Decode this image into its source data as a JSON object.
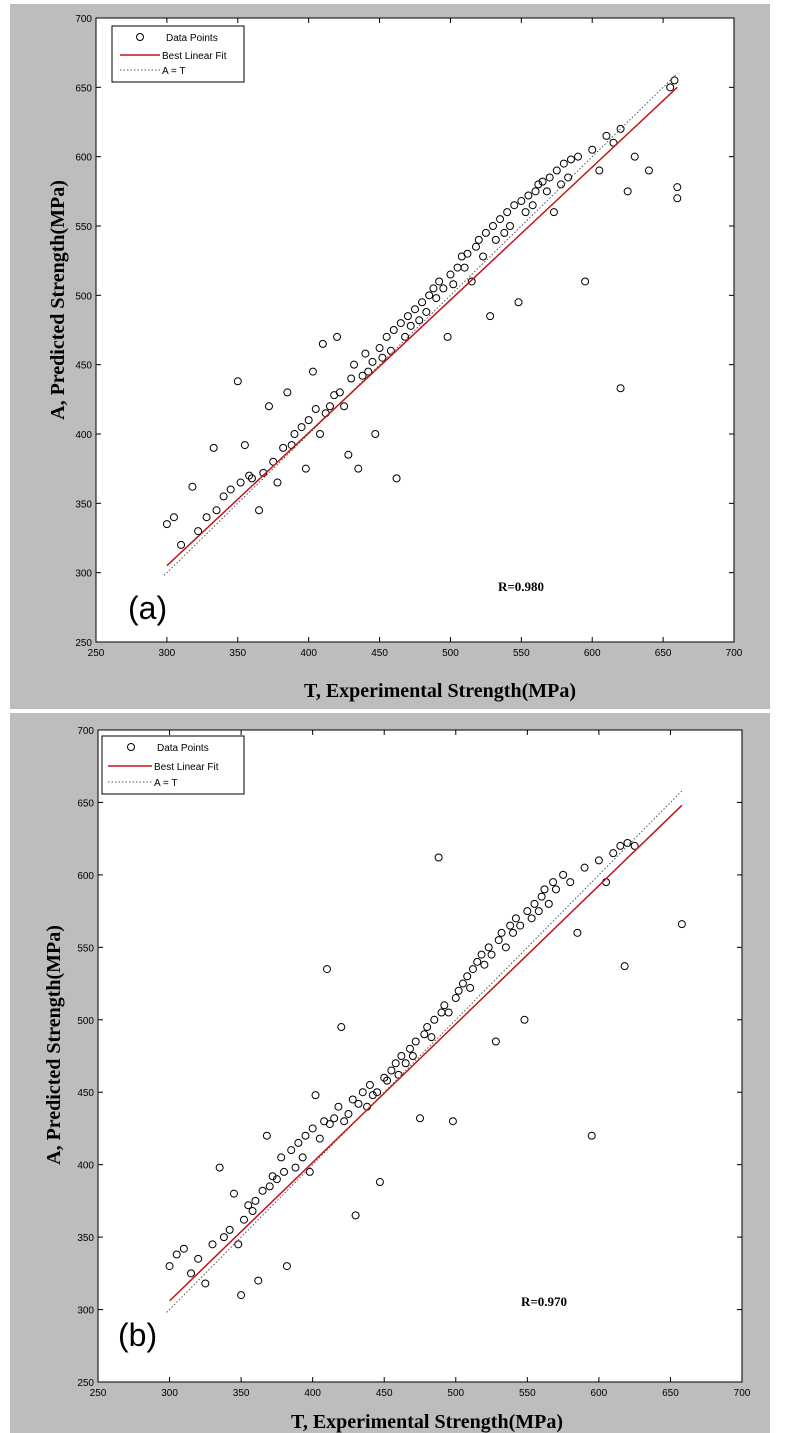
{
  "chart_data": [
    {
      "type": "scatter",
      "panel_label": "(a)",
      "xlabel": "T, Experimental Strength(MPa)",
      "ylabel": "A, Predicted Strength(MPa)",
      "xlim": [
        250,
        700
      ],
      "ylim": [
        250,
        700
      ],
      "xticks": [
        250,
        300,
        350,
        400,
        450,
        500,
        550,
        600,
        650,
        700
      ],
      "yticks": [
        250,
        300,
        350,
        400,
        450,
        500,
        550,
        600,
        650,
        700
      ],
      "grid": false,
      "legend_position": "top-left",
      "legend": [
        {
          "label": "Data Points",
          "marker": "circle",
          "color": "#000000"
        },
        {
          "label": "Best Linear Fit",
          "style": "solid",
          "color": "#c0151b"
        },
        {
          "label": "A = T",
          "style": "dotted",
          "color": "#555555"
        }
      ],
      "annotation": "R=0.980",
      "fit_line": {
        "x": [
          300,
          660
        ],
        "y": [
          305,
          650
        ]
      },
      "identity_line": {
        "x": [
          298,
          660
        ],
        "y": [
          298,
          660
        ]
      },
      "series": [
        {
          "name": "Data Points",
          "points": [
            [
              300,
              335
            ],
            [
              305,
              340
            ],
            [
              310,
              320
            ],
            [
              318,
              362
            ],
            [
              322,
              330
            ],
            [
              328,
              340
            ],
            [
              333,
              390
            ],
            [
              335,
              345
            ],
            [
              340,
              355
            ],
            [
              345,
              360
            ],
            [
              350,
              438
            ],
            [
              352,
              365
            ],
            [
              355,
              392
            ],
            [
              358,
              370
            ],
            [
              360,
              368
            ],
            [
              365,
              345
            ],
            [
              368,
              372
            ],
            [
              372,
              420
            ],
            [
              375,
              380
            ],
            [
              378,
              365
            ],
            [
              382,
              390
            ],
            [
              385,
              430
            ],
            [
              388,
              392
            ],
            [
              390,
              400
            ],
            [
              395,
              405
            ],
            [
              398,
              375
            ],
            [
              400,
              410
            ],
            [
              403,
              445
            ],
            [
              405,
              418
            ],
            [
              408,
              400
            ],
            [
              410,
              465
            ],
            [
              412,
              415
            ],
            [
              415,
              420
            ],
            [
              418,
              428
            ],
            [
              420,
              470
            ],
            [
              422,
              430
            ],
            [
              425,
              420
            ],
            [
              428,
              385
            ],
            [
              430,
              440
            ],
            [
              432,
              450
            ],
            [
              435,
              375
            ],
            [
              438,
              442
            ],
            [
              440,
              458
            ],
            [
              442,
              445
            ],
            [
              445,
              452
            ],
            [
              447,
              400
            ],
            [
              450,
              462
            ],
            [
              452,
              455
            ],
            [
              455,
              470
            ],
            [
              458,
              460
            ],
            [
              460,
              475
            ],
            [
              462,
              368
            ],
            [
              465,
              480
            ],
            [
              468,
              470
            ],
            [
              470,
              485
            ],
            [
              472,
              478
            ],
            [
              475,
              490
            ],
            [
              478,
              482
            ],
            [
              480,
              495
            ],
            [
              483,
              488
            ],
            [
              485,
              500
            ],
            [
              488,
              505
            ],
            [
              490,
              498
            ],
            [
              492,
              510
            ],
            [
              495,
              505
            ],
            [
              498,
              470
            ],
            [
              500,
              515
            ],
            [
              502,
              508
            ],
            [
              505,
              520
            ],
            [
              508,
              528
            ],
            [
              510,
              520
            ],
            [
              512,
              530
            ],
            [
              515,
              510
            ],
            [
              518,
              535
            ],
            [
              520,
              540
            ],
            [
              523,
              528
            ],
            [
              525,
              545
            ],
            [
              528,
              485
            ],
            [
              530,
              550
            ],
            [
              532,
              540
            ],
            [
              535,
              555
            ],
            [
              538,
              545
            ],
            [
              540,
              560
            ],
            [
              542,
              550
            ],
            [
              545,
              565
            ],
            [
              548,
              495
            ],
            [
              550,
              568
            ],
            [
              553,
              560
            ],
            [
              555,
              572
            ],
            [
              558,
              565
            ],
            [
              560,
              575
            ],
            [
              562,
              580
            ],
            [
              565,
              582
            ],
            [
              568,
              575
            ],
            [
              570,
              585
            ],
            [
              573,
              560
            ],
            [
              575,
              590
            ],
            [
              578,
              580
            ],
            [
              580,
              595
            ],
            [
              583,
              585
            ],
            [
              585,
              598
            ],
            [
              590,
              600
            ],
            [
              595,
              510
            ],
            [
              600,
              605
            ],
            [
              605,
              590
            ],
            [
              610,
              615
            ],
            [
              615,
              610
            ],
            [
              620,
              433
            ],
            [
              620,
              620
            ],
            [
              625,
              575
            ],
            [
              630,
              600
            ],
            [
              640,
              590
            ],
            [
              655,
              650
            ],
            [
              658,
              655
            ],
            [
              660,
              578
            ],
            [
              660,
              570
            ]
          ]
        }
      ]
    },
    {
      "type": "scatter",
      "panel_label": "(b)",
      "xlabel": "T, Experimental Strength(MPa)",
      "ylabel": "A, Predicted Strength(MPa)",
      "xlim": [
        250,
        700
      ],
      "ylim": [
        250,
        700
      ],
      "xticks": [
        250,
        300,
        350,
        400,
        450,
        500,
        550,
        600,
        650,
        700
      ],
      "yticks": [
        250,
        300,
        350,
        400,
        450,
        500,
        550,
        600,
        650,
        700
      ],
      "grid": false,
      "legend_position": "top-left",
      "legend": [
        {
          "label": "Data Points",
          "marker": "circle",
          "color": "#000000"
        },
        {
          "label": "Best Linear Fit",
          "style": "solid",
          "color": "#c0151b"
        },
        {
          "label": "A = T",
          "style": "dotted",
          "color": "#555555"
        }
      ],
      "annotation": "R=0.970",
      "fit_line": {
        "x": [
          300,
          658
        ],
        "y": [
          306,
          648
        ]
      },
      "identity_line": {
        "x": [
          298,
          658
        ],
        "y": [
          298,
          658
        ]
      },
      "series": [
        {
          "name": "Data Points",
          "points": [
            [
              300,
              330
            ],
            [
              305,
              338
            ],
            [
              310,
              342
            ],
            [
              315,
              325
            ],
            [
              320,
              335
            ],
            [
              325,
              318
            ],
            [
              330,
              345
            ],
            [
              335,
              398
            ],
            [
              338,
              350
            ],
            [
              342,
              355
            ],
            [
              345,
              380
            ],
            [
              348,
              345
            ],
            [
              350,
              310
            ],
            [
              352,
              362
            ],
            [
              355,
              372
            ],
            [
              358,
              368
            ],
            [
              360,
              375
            ],
            [
              362,
              320
            ],
            [
              365,
              382
            ],
            [
              368,
              420
            ],
            [
              370,
              385
            ],
            [
              372,
              392
            ],
            [
              375,
              390
            ],
            [
              378,
              405
            ],
            [
              380,
              395
            ],
            [
              382,
              330
            ],
            [
              385,
              410
            ],
            [
              388,
              398
            ],
            [
              390,
              415
            ],
            [
              393,
              405
            ],
            [
              395,
              420
            ],
            [
              398,
              395
            ],
            [
              400,
              425
            ],
            [
              402,
              448
            ],
            [
              405,
              418
            ],
            [
              408,
              430
            ],
            [
              410,
              535
            ],
            [
              412,
              428
            ],
            [
              415,
              432
            ],
            [
              418,
              440
            ],
            [
              420,
              495
            ],
            [
              422,
              430
            ],
            [
              425,
              435
            ],
            [
              428,
              445
            ],
            [
              430,
              365
            ],
            [
              432,
              442
            ],
            [
              435,
              450
            ],
            [
              438,
              440
            ],
            [
              440,
              455
            ],
            [
              442,
              448
            ],
            [
              445,
              450
            ],
            [
              447,
              388
            ],
            [
              450,
              460
            ],
            [
              452,
              458
            ],
            [
              455,
              465
            ],
            [
              458,
              470
            ],
            [
              460,
              462
            ],
            [
              462,
              475
            ],
            [
              465,
              470
            ],
            [
              468,
              480
            ],
            [
              470,
              475
            ],
            [
              472,
              485
            ],
            [
              475,
              432
            ],
            [
              478,
              490
            ],
            [
              480,
              495
            ],
            [
              483,
              488
            ],
            [
              485,
              500
            ],
            [
              488,
              612
            ],
            [
              490,
              505
            ],
            [
              492,
              510
            ],
            [
              495,
              505
            ],
            [
              498,
              430
            ],
            [
              500,
              515
            ],
            [
              502,
              520
            ],
            [
              505,
              525
            ],
            [
              508,
              530
            ],
            [
              510,
              522
            ],
            [
              512,
              535
            ],
            [
              515,
              540
            ],
            [
              518,
              545
            ],
            [
              520,
              538
            ],
            [
              523,
              550
            ],
            [
              525,
              545
            ],
            [
              528,
              485
            ],
            [
              530,
              555
            ],
            [
              532,
              560
            ],
            [
              535,
              550
            ],
            [
              538,
              565
            ],
            [
              540,
              560
            ],
            [
              542,
              570
            ],
            [
              545,
              565
            ],
            [
              548,
              500
            ],
            [
              550,
              575
            ],
            [
              553,
              570
            ],
            [
              555,
              580
            ],
            [
              558,
              575
            ],
            [
              560,
              585
            ],
            [
              562,
              590
            ],
            [
              565,
              580
            ],
            [
              568,
              595
            ],
            [
              570,
              590
            ],
            [
              575,
              600
            ],
            [
              580,
              595
            ],
            [
              585,
              560
            ],
            [
              590,
              605
            ],
            [
              595,
              420
            ],
            [
              600,
              610
            ],
            [
              605,
              595
            ],
            [
              610,
              615
            ],
            [
              615,
              620
            ],
            [
              618,
              537
            ],
            [
              620,
              622
            ],
            [
              625,
              620
            ],
            [
              658,
              566
            ]
          ]
        }
      ]
    }
  ]
}
